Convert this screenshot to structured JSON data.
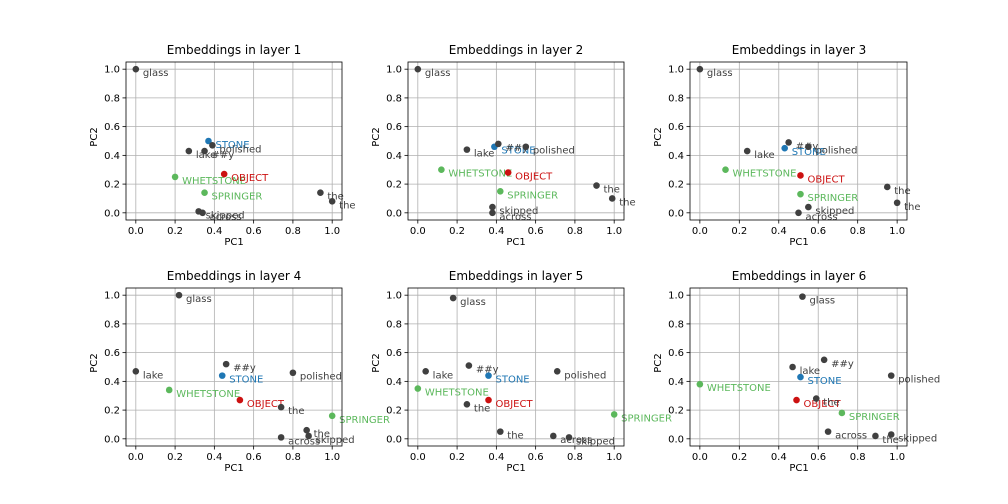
{
  "chart_data": [
    {
      "type": "scatter",
      "title": "Embeddings in layer 1",
      "xlabel": "PC1",
      "ylabel": "PC2",
      "xlim": [
        -0.05,
        1.05
      ],
      "ylim": [
        -0.05,
        1.05
      ],
      "xticks": [
        "0.0",
        "0.2",
        "0.4",
        "0.6",
        "0.8",
        "1.0"
      ],
      "yticks": [
        "0.0",
        "0.2",
        "0.4",
        "0.6",
        "0.8",
        "1.0"
      ],
      "grid": true,
      "points": [
        {
          "label": "glass",
          "x": 0.0,
          "y": 1.0,
          "color": "#404040"
        },
        {
          "label": "STONE",
          "x": 0.37,
          "y": 0.5,
          "color": "#1f77b4"
        },
        {
          "label": "polished",
          "x": 0.39,
          "y": 0.47,
          "color": "#404040"
        },
        {
          "label": "lake",
          "x": 0.27,
          "y": 0.43,
          "color": "#404040"
        },
        {
          "label": "##y",
          "x": 0.35,
          "y": 0.43,
          "color": "#404040"
        },
        {
          "label": "WHETSTONE",
          "x": 0.2,
          "y": 0.25,
          "color": "#5cb85c"
        },
        {
          "label": "OBJECT",
          "x": 0.45,
          "y": 0.27,
          "color": "#cc1111"
        },
        {
          "label": "SPRINGER",
          "x": 0.35,
          "y": 0.14,
          "color": "#5cb85c"
        },
        {
          "label": "the",
          "x": 0.94,
          "y": 0.14,
          "color": "#404040"
        },
        {
          "label": "the",
          "x": 1.0,
          "y": 0.08,
          "color": "#404040"
        },
        {
          "label": "skipped",
          "x": 0.32,
          "y": 0.01,
          "color": "#404040"
        },
        {
          "label": "across",
          "x": 0.34,
          "y": 0.0,
          "color": "#404040"
        }
      ]
    },
    {
      "type": "scatter",
      "title": "Embeddings in layer 2",
      "xlabel": "PC1",
      "ylabel": "PC2",
      "xlim": [
        -0.05,
        1.05
      ],
      "ylim": [
        -0.05,
        1.05
      ],
      "xticks": [
        "0.0",
        "0.2",
        "0.4",
        "0.6",
        "0.8",
        "1.0"
      ],
      "yticks": [
        "0.0",
        "0.2",
        "0.4",
        "0.6",
        "0.8",
        "1.0"
      ],
      "grid": true,
      "points": [
        {
          "label": "glass",
          "x": 0.0,
          "y": 1.0,
          "color": "#404040"
        },
        {
          "label": "lake",
          "x": 0.25,
          "y": 0.44,
          "color": "#404040"
        },
        {
          "label": "STONE",
          "x": 0.39,
          "y": 0.46,
          "color": "#1f77b4"
        },
        {
          "label": "##y",
          "x": 0.41,
          "y": 0.48,
          "color": "#404040"
        },
        {
          "label": "polished",
          "x": 0.55,
          "y": 0.46,
          "color": "#404040"
        },
        {
          "label": "WHETSTONE",
          "x": 0.12,
          "y": 0.3,
          "color": "#5cb85c"
        },
        {
          "label": "OBJECT",
          "x": 0.46,
          "y": 0.28,
          "color": "#cc1111"
        },
        {
          "label": "SPRINGER",
          "x": 0.42,
          "y": 0.15,
          "color": "#5cb85c"
        },
        {
          "label": "skipped",
          "x": 0.38,
          "y": 0.04,
          "color": "#404040"
        },
        {
          "label": "across",
          "x": 0.38,
          "y": 0.0,
          "color": "#404040"
        },
        {
          "label": "the",
          "x": 0.91,
          "y": 0.19,
          "color": "#404040"
        },
        {
          "label": "the",
          "x": 0.99,
          "y": 0.1,
          "color": "#404040"
        }
      ]
    },
    {
      "type": "scatter",
      "title": "Embeddings in layer 3",
      "xlabel": "PC1",
      "ylabel": "PC2",
      "xlim": [
        -0.05,
        1.05
      ],
      "ylim": [
        -0.05,
        1.05
      ],
      "xticks": [
        "0.0",
        "0.2",
        "0.4",
        "0.6",
        "0.8",
        "1.0"
      ],
      "yticks": [
        "0.0",
        "0.2",
        "0.4",
        "0.6",
        "0.8",
        "1.0"
      ],
      "grid": true,
      "points": [
        {
          "label": "glass",
          "x": 0.0,
          "y": 1.0,
          "color": "#404040"
        },
        {
          "label": "lake",
          "x": 0.24,
          "y": 0.43,
          "color": "#404040"
        },
        {
          "label": "##y",
          "x": 0.45,
          "y": 0.49,
          "color": "#404040"
        },
        {
          "label": "STONE",
          "x": 0.43,
          "y": 0.45,
          "color": "#1f77b4"
        },
        {
          "label": "polished",
          "x": 0.55,
          "y": 0.46,
          "color": "#404040"
        },
        {
          "label": "WHETSTONE",
          "x": 0.13,
          "y": 0.3,
          "color": "#5cb85c"
        },
        {
          "label": "OBJECT",
          "x": 0.51,
          "y": 0.26,
          "color": "#cc1111"
        },
        {
          "label": "SPRINGER",
          "x": 0.51,
          "y": 0.13,
          "color": "#5cb85c"
        },
        {
          "label": "skipped",
          "x": 0.55,
          "y": 0.04,
          "color": "#404040"
        },
        {
          "label": "across",
          "x": 0.5,
          "y": 0.0,
          "color": "#404040"
        },
        {
          "label": "the",
          "x": 0.95,
          "y": 0.18,
          "color": "#404040"
        },
        {
          "label": "the",
          "x": 1.0,
          "y": 0.07,
          "color": "#404040"
        }
      ]
    },
    {
      "type": "scatter",
      "title": "Embeddings in layer 4",
      "xlabel": "PC1",
      "ylabel": "PC2",
      "xlim": [
        -0.05,
        1.05
      ],
      "ylim": [
        -0.05,
        1.05
      ],
      "xticks": [
        "0.0",
        "0.2",
        "0.4",
        "0.6",
        "0.8",
        "1.0"
      ],
      "yticks": [
        "0.0",
        "0.2",
        "0.4",
        "0.6",
        "0.8",
        "1.0"
      ],
      "grid": true,
      "points": [
        {
          "label": "glass",
          "x": 0.22,
          "y": 1.0,
          "color": "#404040"
        },
        {
          "label": "lake",
          "x": 0.0,
          "y": 0.47,
          "color": "#404040"
        },
        {
          "label": "##y",
          "x": 0.46,
          "y": 0.52,
          "color": "#404040"
        },
        {
          "label": "STONE",
          "x": 0.44,
          "y": 0.44,
          "color": "#1f77b4"
        },
        {
          "label": "polished",
          "x": 0.8,
          "y": 0.46,
          "color": "#404040"
        },
        {
          "label": "WHETSTONE",
          "x": 0.17,
          "y": 0.34,
          "color": "#5cb85c"
        },
        {
          "label": "OBJECT",
          "x": 0.53,
          "y": 0.27,
          "color": "#cc1111"
        },
        {
          "label": "the",
          "x": 0.74,
          "y": 0.22,
          "color": "#404040"
        },
        {
          "label": "SPRINGER",
          "x": 1.0,
          "y": 0.16,
          "color": "#5cb85c"
        },
        {
          "label": "the",
          "x": 0.87,
          "y": 0.06,
          "color": "#404040"
        },
        {
          "label": "across",
          "x": 0.74,
          "y": 0.01,
          "color": "#404040"
        },
        {
          "label": "skipped",
          "x": 0.88,
          "y": 0.02,
          "color": "#404040"
        }
      ]
    },
    {
      "type": "scatter",
      "title": "Embeddings in layer 5",
      "xlabel": "PC1",
      "ylabel": "PC2",
      "xlim": [
        -0.05,
        1.05
      ],
      "ylim": [
        -0.05,
        1.05
      ],
      "xticks": [
        "0.0",
        "0.2",
        "0.4",
        "0.6",
        "0.8",
        "1.0"
      ],
      "yticks": [
        "0.0",
        "0.2",
        "0.4",
        "0.6",
        "0.8",
        "1.0"
      ],
      "grid": true,
      "points": [
        {
          "label": "glass",
          "x": 0.18,
          "y": 0.98,
          "color": "#404040"
        },
        {
          "label": "lake",
          "x": 0.04,
          "y": 0.47,
          "color": "#404040"
        },
        {
          "label": "##y",
          "x": 0.26,
          "y": 0.51,
          "color": "#404040"
        },
        {
          "label": "STONE",
          "x": 0.36,
          "y": 0.44,
          "color": "#1f77b4"
        },
        {
          "label": "polished",
          "x": 0.71,
          "y": 0.47,
          "color": "#404040"
        },
        {
          "label": "WHETSTONE",
          "x": 0.0,
          "y": 0.35,
          "color": "#5cb85c"
        },
        {
          "label": "the",
          "x": 0.25,
          "y": 0.24,
          "color": "#404040"
        },
        {
          "label": "OBJECT",
          "x": 0.36,
          "y": 0.27,
          "color": "#cc1111"
        },
        {
          "label": "the",
          "x": 0.42,
          "y": 0.05,
          "color": "#404040"
        },
        {
          "label": "across",
          "x": 0.69,
          "y": 0.02,
          "color": "#404040"
        },
        {
          "label": "skipped",
          "x": 0.77,
          "y": 0.01,
          "color": "#404040"
        },
        {
          "label": "SPRINGER",
          "x": 1.0,
          "y": 0.17,
          "color": "#5cb85c"
        }
      ]
    },
    {
      "type": "scatter",
      "title": "Embeddings in layer 6",
      "xlabel": "PC1",
      "ylabel": "PC2",
      "xlim": [
        -0.05,
        1.05
      ],
      "ylim": [
        -0.05,
        1.05
      ],
      "xticks": [
        "0.0",
        "0.2",
        "0.4",
        "0.6",
        "0.8",
        "1.0"
      ],
      "yticks": [
        "0.0",
        "0.2",
        "0.4",
        "0.6",
        "0.8",
        "1.0"
      ],
      "grid": true,
      "points": [
        {
          "label": "glass",
          "x": 0.52,
          "y": 0.99,
          "color": "#404040"
        },
        {
          "label": "##y",
          "x": 0.63,
          "y": 0.55,
          "color": "#404040"
        },
        {
          "label": "lake",
          "x": 0.47,
          "y": 0.5,
          "color": "#404040"
        },
        {
          "label": "STONE",
          "x": 0.51,
          "y": 0.43,
          "color": "#1f77b4"
        },
        {
          "label": "polished",
          "x": 0.97,
          "y": 0.44,
          "color": "#404040"
        },
        {
          "label": "WHETSTONE",
          "x": 0.0,
          "y": 0.38,
          "color": "#5cb85c"
        },
        {
          "label": "OBJECT",
          "x": 0.49,
          "y": 0.27,
          "color": "#cc1111"
        },
        {
          "label": "the",
          "x": 0.59,
          "y": 0.28,
          "color": "#404040"
        },
        {
          "label": "SPRINGER",
          "x": 0.72,
          "y": 0.18,
          "color": "#5cb85c"
        },
        {
          "label": "across",
          "x": 0.65,
          "y": 0.05,
          "color": "#404040"
        },
        {
          "label": "the",
          "x": 0.89,
          "y": 0.02,
          "color": "#404040"
        },
        {
          "label": "skipped",
          "x": 0.97,
          "y": 0.03,
          "color": "#404040"
        }
      ]
    }
  ]
}
